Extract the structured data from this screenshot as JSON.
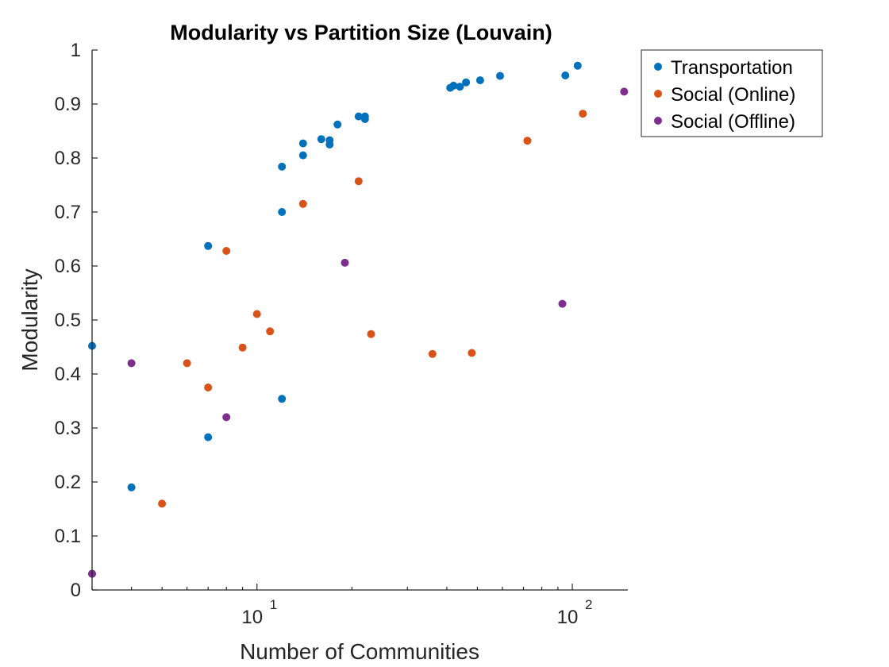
{
  "chart_data": {
    "type": "scatter",
    "title": "Modularity vs Partition Size (Louvain)",
    "xlabel": "Number of Communities",
    "ylabel": "Modularity",
    "xscale": "log",
    "xlim": [
      3,
      150
    ],
    "ylim": [
      0,
      1
    ],
    "x_ticks": [
      {
        "value": 10,
        "base": "10",
        "exp": "1"
      },
      {
        "value": 100,
        "base": "10",
        "exp": "2"
      }
    ],
    "y_ticks": [
      "0",
      "0.1",
      "0.2",
      "0.3",
      "0.4",
      "0.5",
      "0.6",
      "0.7",
      "0.8",
      "0.9",
      "1"
    ],
    "grid": false,
    "legend_position": "outside top-right",
    "series": [
      {
        "name": "Transportation",
        "color": "#0072bd",
        "points": [
          [
            3,
            0.452
          ],
          [
            3,
            0.03
          ],
          [
            4,
            0.19
          ],
          [
            7,
            0.637
          ],
          [
            7,
            0.283
          ],
          [
            12,
            0.784
          ],
          [
            12,
            0.7
          ],
          [
            12,
            0.354
          ],
          [
            14,
            0.827
          ],
          [
            14,
            0.805
          ],
          [
            16,
            0.835
          ],
          [
            17,
            0.833
          ],
          [
            17,
            0.825
          ],
          [
            18,
            0.862
          ],
          [
            21,
            0.877
          ],
          [
            22,
            0.877
          ],
          [
            22,
            0.872
          ],
          [
            41,
            0.93
          ],
          [
            42,
            0.934
          ],
          [
            44,
            0.932
          ],
          [
            46,
            0.94
          ],
          [
            51,
            0.944
          ],
          [
            59,
            0.952
          ],
          [
            95,
            0.953
          ],
          [
            104,
            0.971
          ]
        ]
      },
      {
        "name": "Social (Online)",
        "color": "#d95319",
        "points": [
          [
            5,
            0.16
          ],
          [
            6,
            0.42
          ],
          [
            7,
            0.375
          ],
          [
            8,
            0.628
          ],
          [
            9,
            0.449
          ],
          [
            10,
            0.511
          ],
          [
            11,
            0.479
          ],
          [
            14,
            0.715
          ],
          [
            21,
            0.757
          ],
          [
            23,
            0.474
          ],
          [
            36,
            0.437
          ],
          [
            48,
            0.439
          ],
          [
            72,
            0.832
          ],
          [
            108,
            0.882
          ]
        ]
      },
      {
        "name": "Social (Offline)",
        "color": "#7e2f8e",
        "points": [
          [
            3,
            0.03
          ],
          [
            4,
            0.42
          ],
          [
            8,
            0.32
          ],
          [
            19,
            0.606
          ],
          [
            93,
            0.53
          ],
          [
            146,
            0.923
          ]
        ]
      }
    ]
  }
}
